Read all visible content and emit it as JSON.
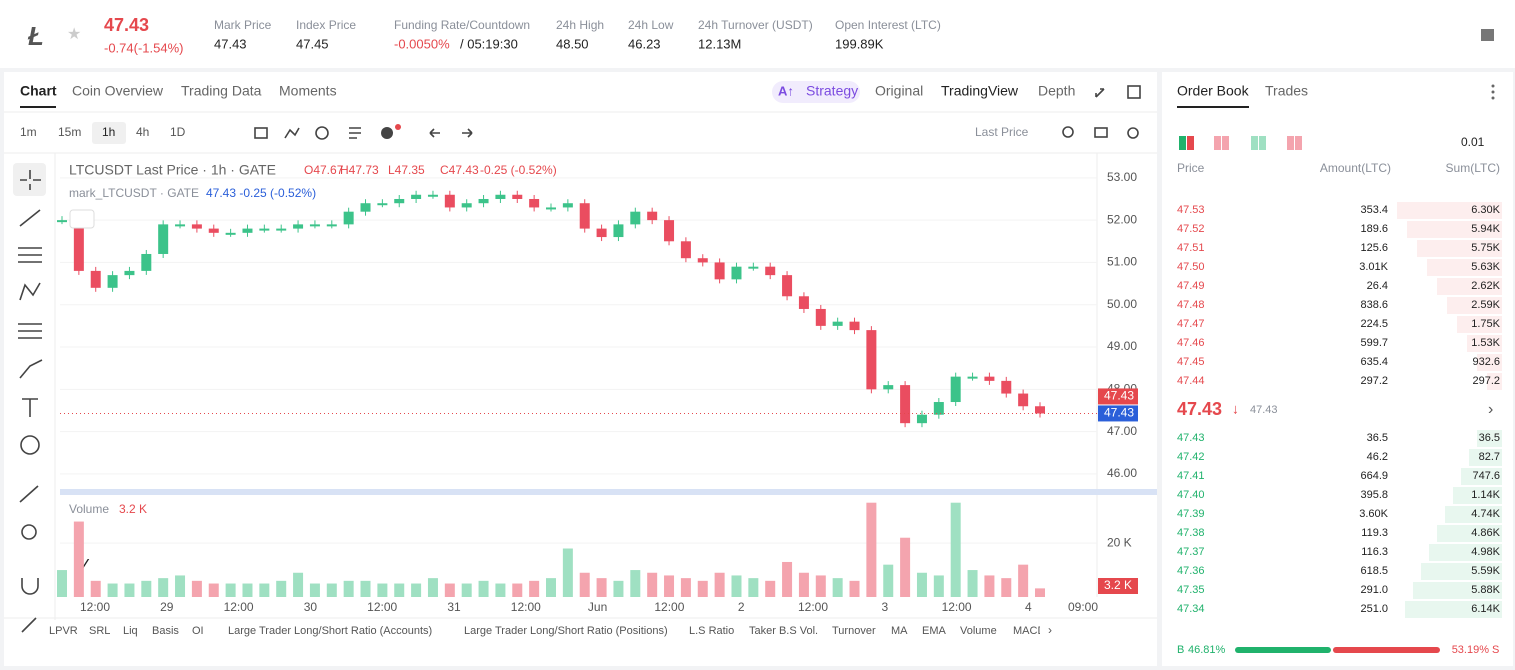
{
  "header": {
    "price": "47.43",
    "change": "-0.74(-1.54%)",
    "stats": [
      {
        "label": "Mark Price",
        "value": "47.43"
      },
      {
        "label": "Index Price",
        "value": "47.45"
      },
      {
        "label": "Funding Rate/Countdown",
        "value": "-0.0050%",
        "value2": "/ 05:19:30"
      },
      {
        "label": "24h High",
        "value": "48.50"
      },
      {
        "label": "24h Low",
        "value": "46.23"
      },
      {
        "label": "24h Turnover (USDT)",
        "value": "12.13M"
      },
      {
        "label": "Open Interest (LTC)",
        "value": "199.89K"
      }
    ]
  },
  "tabs": [
    "Chart",
    "Coin Overview",
    "Trading Data",
    "Moments"
  ],
  "view_tabs": [
    "Strategy",
    "Original",
    "TradingView",
    "Depth"
  ],
  "intervals": [
    "1m",
    "15m",
    "1h",
    "4h",
    "1D"
  ],
  "price_type": "Last Price",
  "chart_data": {
    "type": "candlestick",
    "title": "LTCUSDT Last Price · 1h · GATE",
    "ohlc_legend": [
      "O47.67",
      "H47.73",
      "L47.35",
      "C47.43",
      "-0.25 (-0.52%)"
    ],
    "mark_label": "mark_LTCUSDT · GATE",
    "mark_values": "47.43 -0.25 (-0.52%)",
    "x_labels": [
      "12:00",
      "29",
      "12:00",
      "30",
      "12:00",
      "31",
      "12:00",
      "Jun",
      "12:00",
      "2",
      "12:00",
      "3",
      "12:00",
      "4",
      "09:00"
    ],
    "closes": [
      52.0,
      50.8,
      50.4,
      50.7,
      50.8,
      51.2,
      51.9,
      51.9,
      51.8,
      51.7,
      51.7,
      51.8,
      51.8,
      51.8,
      51.9,
      51.9,
      51.9,
      52.2,
      52.4,
      52.4,
      52.5,
      52.6,
      52.6,
      52.3,
      52.4,
      52.5,
      52.6,
      52.5,
      52.3,
      52.3,
      52.4,
      51.8,
      51.6,
      51.9,
      52.2,
      52.0,
      51.5,
      51.1,
      51.0,
      50.6,
      50.9,
      50.9,
      50.7,
      50.2,
      49.9,
      49.5,
      49.6,
      49.4,
      48.0,
      48.1,
      47.2,
      47.4,
      47.7,
      48.3,
      48.3,
      48.2,
      47.9,
      47.6,
      47.43
    ],
    "up_color": "#3cc38a",
    "down_color": "#ea4d60",
    "ylim": [
      45.62,
      53.54
    ],
    "yticks": [
      {
        "value": 46,
        "label": "46.00"
      },
      {
        "value": 47,
        "label": "47.00"
      },
      {
        "value": 48,
        "label": "48.00"
      },
      {
        "value": 49,
        "label": "49.00"
      },
      {
        "value": 50,
        "label": "50.00"
      },
      {
        "value": 51,
        "label": "51.00"
      },
      {
        "value": 52,
        "label": "52.00"
      },
      {
        "value": 53,
        "label": "53.00"
      }
    ],
    "last_price": 47.43,
    "last_price_label": "47.43",
    "mark_price_label": "47.43",
    "volume": {
      "title": "Volume",
      "current_label": "3.2 K",
      "values": [
        10,
        28,
        6,
        5,
        5,
        6,
        7,
        8,
        6,
        5,
        5,
        5,
        5,
        6,
        9,
        5,
        5,
        6,
        6,
        5,
        5,
        5,
        7,
        5,
        5,
        6,
        5,
        5,
        6,
        7,
        18,
        9,
        7,
        6,
        10,
        9,
        8,
        7,
        6,
        9,
        8,
        7,
        6,
        13,
        9,
        8,
        7,
        6,
        35,
        12,
        22,
        9,
        8,
        35,
        10,
        8,
        7,
        12,
        3.2
      ],
      "ylim": [
        0,
        36
      ],
      "yticks": [
        {
          "value": 20,
          "label": "20 K"
        }
      ]
    }
  },
  "indicators": [
    "LPVR",
    "SRL",
    "Liq",
    "Basis",
    "OI",
    "Large Trader Long/Short Ratio (Accounts)",
    "Large Trader Long/Short Ratio (Positions)",
    "L.S Ratio",
    "Taker B.S Vol.",
    "Turnover",
    "MA",
    "EMA",
    "Volume",
    "MACD"
  ],
  "order_book": {
    "tabs": [
      "Order Book",
      "Trades"
    ],
    "precision": "0.01",
    "columns": [
      "Price",
      "Amount(LTC)",
      "Sum(LTC)"
    ],
    "asks": [
      [
        "47.53",
        "353.4",
        "6.30K"
      ],
      [
        "47.52",
        "189.6",
        "5.94K"
      ],
      [
        "47.51",
        "125.6",
        "5.75K"
      ],
      [
        "47.50",
        "3.01K",
        "5.63K"
      ],
      [
        "47.49",
        "26.4",
        "2.62K"
      ],
      [
        "47.48",
        "838.6",
        "2.59K"
      ],
      [
        "47.47",
        "224.5",
        "1.75K"
      ],
      [
        "47.46",
        "599.7",
        "1.53K"
      ],
      [
        "47.45",
        "635.4",
        "932.6"
      ],
      [
        "47.44",
        "297.2",
        "297.2"
      ]
    ],
    "mid_price": "47.43",
    "mark_price": "47.43",
    "bids": [
      [
        "47.43",
        "36.5",
        "36.5"
      ],
      [
        "47.42",
        "46.2",
        "82.7"
      ],
      [
        "47.41",
        "664.9",
        "747.6"
      ],
      [
        "47.40",
        "395.8",
        "1.14K"
      ],
      [
        "47.39",
        "3.60K",
        "4.74K"
      ],
      [
        "47.38",
        "119.3",
        "4.86K"
      ],
      [
        "47.37",
        "116.3",
        "4.98K"
      ],
      [
        "47.36",
        "618.5",
        "5.59K"
      ],
      [
        "47.35",
        "291.0",
        "5.88K"
      ],
      [
        "47.34",
        "251.0",
        "6.14K"
      ]
    ],
    "buy_letter": "B",
    "sell_letter": "S",
    "buy": 46.81,
    "buy_label": "46.81%",
    "sell": 53.19,
    "sell_label": "53.19%"
  }
}
